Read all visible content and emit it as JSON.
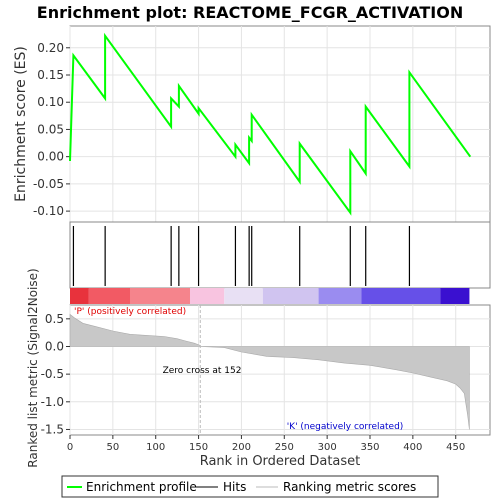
{
  "chart_data": [
    {
      "type": "line",
      "title": "Enrichment plot: REACTOME_FCGR_ACTIVATION",
      "ylabel": "Enrichment score (ES)",
      "xlim": [
        0,
        490
      ],
      "ylim": [
        -0.12,
        0.24
      ],
      "yticks": [
        -0.1,
        -0.05,
        0.0,
        0.05,
        0.1,
        0.15,
        0.2
      ],
      "ytick_labels": [
        "-0.10",
        "-0.05",
        "0.00",
        "0.05",
        "0.10",
        "0.15",
        "0.20"
      ],
      "grid": true,
      "series": [
        {
          "name": "Enrichment profile",
          "color": "#00ff00",
          "x": [
            0,
            4,
            41,
            41,
            118,
            118,
            127,
            127,
            150,
            150,
            193,
            193,
            209,
            209,
            212,
            212,
            268,
            268,
            327,
            327,
            345,
            345,
            396,
            396,
            467
          ],
          "y": [
            -0.008,
            0.186,
            0.107,
            0.222,
            0.055,
            0.107,
            0.092,
            0.13,
            0.079,
            0.089,
            0.0,
            0.022,
            -0.012,
            0.035,
            0.029,
            0.077,
            -0.046,
            0.024,
            -0.103,
            0.01,
            -0.031,
            0.092,
            -0.018,
            0.155,
            0.0
          ]
        }
      ]
    },
    {
      "type": "scatter",
      "series": [
        {
          "name": "Hits",
          "x": [
            4,
            41,
            118,
            127,
            150,
            193,
            209,
            212,
            268,
            327,
            345,
            396
          ]
        }
      ]
    },
    {
      "type": "area",
      "xlabel": "Rank in Ordered Dataset",
      "ylabel": "Ranked list metric (Signal2Noise)",
      "xlim": [
        0,
        490
      ],
      "ylim": [
        -1.6,
        0.75
      ],
      "xticks": [
        0,
        50,
        100,
        150,
        200,
        250,
        300,
        350,
        400,
        450
      ],
      "yticks": [
        -1.5,
        -1.0,
        -0.5,
        0.0,
        0.5
      ],
      "ytick_labels": [
        "-1.5",
        "-1.0",
        "-0.5",
        "0.0",
        "0.5"
      ],
      "grid": true,
      "series": [
        {
          "name": "Ranking metric scores",
          "color": "#aaaaaa",
          "x": [
            0,
            5,
            15,
            30,
            50,
            70,
            90,
            110,
            125,
            135,
            145,
            152,
            152,
            180,
            200,
            230,
            260,
            290,
            320,
            350,
            380,
            400,
            420,
            440,
            450,
            455,
            460,
            462,
            464,
            466
          ],
          "y": [
            0.58,
            0.52,
            0.42,
            0.36,
            0.28,
            0.22,
            0.2,
            0.18,
            0.14,
            0.1,
            0.06,
            0.02,
            0.0,
            -0.02,
            -0.1,
            -0.18,
            -0.2,
            -0.24,
            -0.3,
            -0.34,
            -0.42,
            -0.48,
            -0.55,
            -0.62,
            -0.68,
            -0.75,
            -0.85,
            -1.05,
            -1.25,
            -1.5
          ]
        }
      ],
      "annotations": {
        "positive": "'P' (positively correlated)",
        "negative": "'K' (negatively correlated)",
        "zero_cross": "Zero cross at 152"
      },
      "zero_cross_rank": 152
    }
  ],
  "legend": {
    "placement": "bottom",
    "items": [
      {
        "label": "Enrichment profile",
        "color": "#00ff00"
      },
      {
        "label": "Hits",
        "color": "#000000"
      },
      {
        "label": "Ranking metric scores",
        "color": "#bbbbbb"
      }
    ]
  },
  "colors": {
    "positive_text": "#e00000",
    "negative_text": "#0000cc",
    "heat_segments": [
      {
        "from": 0,
        "to": 22,
        "color": "#e8323c"
      },
      {
        "from": 22,
        "to": 70,
        "color": "#f25a64"
      },
      {
        "from": 70,
        "to": 140,
        "color": "#f5848c"
      },
      {
        "from": 140,
        "to": 180,
        "color": "#f8c4e0"
      },
      {
        "from": 180,
        "to": 225,
        "color": "#e8e0f4"
      },
      {
        "from": 225,
        "to": 290,
        "color": "#d0c4f0"
      },
      {
        "from": 290,
        "to": 340,
        "color": "#9a8cf0"
      },
      {
        "from": 340,
        "to": 432,
        "color": "#6650e8"
      },
      {
        "from": 432,
        "to": 466,
        "color": "#3a10d0"
      }
    ]
  }
}
